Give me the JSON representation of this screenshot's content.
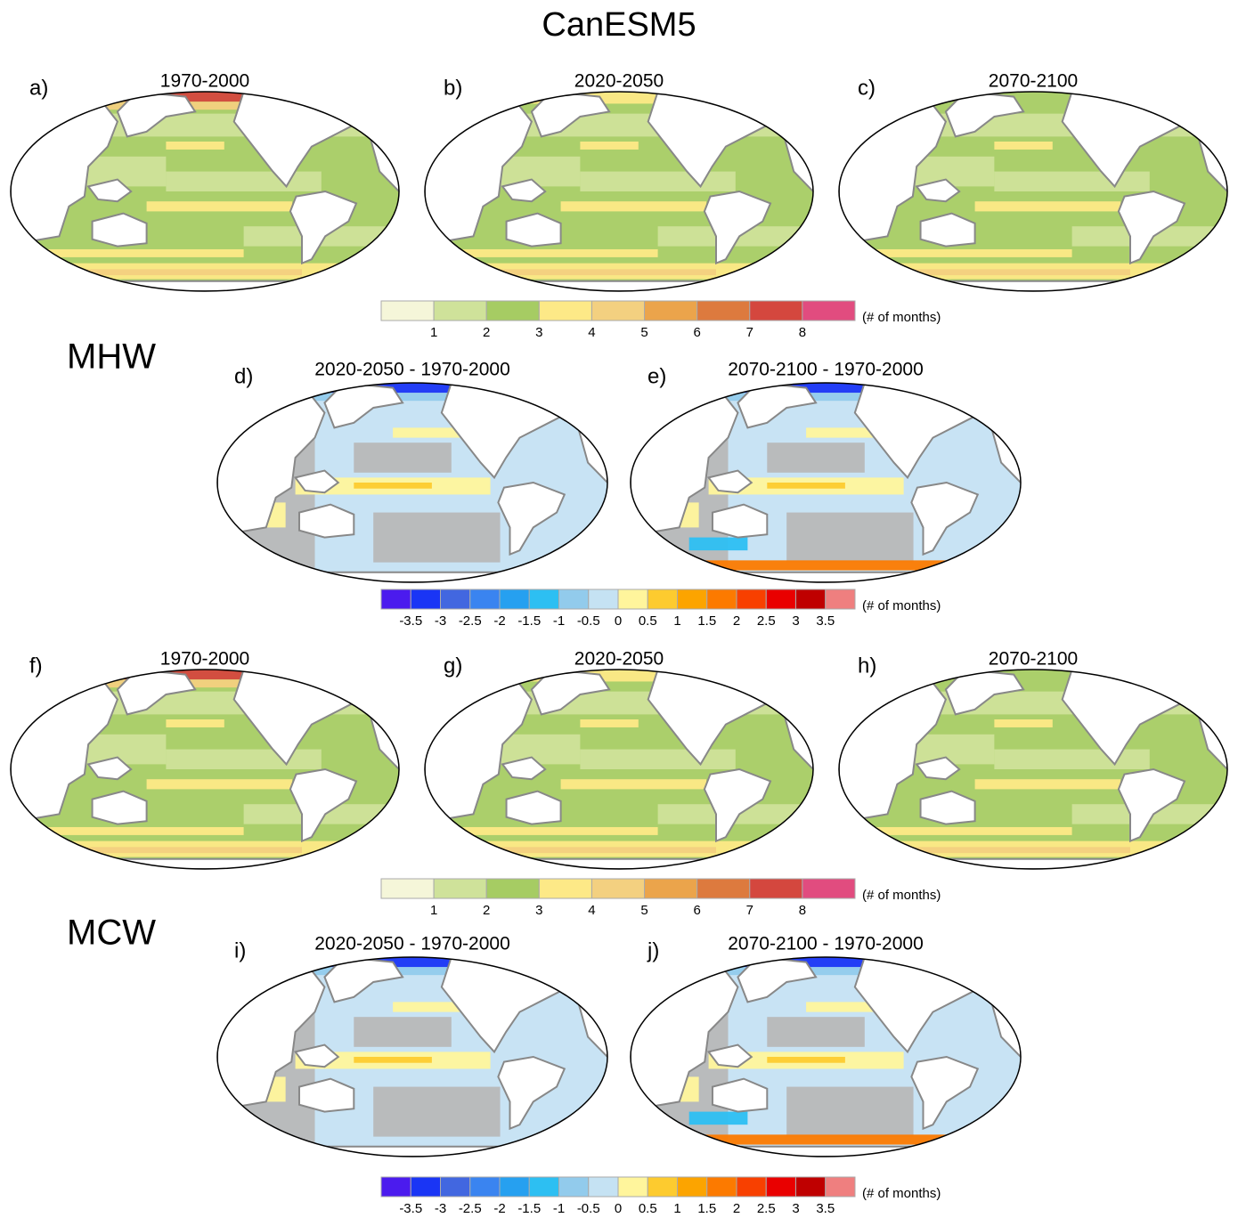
{
  "title": "CanESM5",
  "groups": [
    {
      "label": "MHW",
      "absolute": {
        "panels": [
          {
            "label": "a)",
            "title": "1970-2000"
          },
          {
            "label": "b)",
            "title": "2020-2050"
          },
          {
            "label": "c)",
            "title": "2070-2100"
          }
        ],
        "colorbar": {
          "colors": [
            "#f5f6d9",
            "#cfe29a",
            "#a6cc63",
            "#fde987",
            "#f3d080",
            "#eba44b",
            "#dd7a3e",
            "#d4473e",
            "#e14c7f"
          ],
          "ticks": [
            1,
            2,
            3,
            4,
            5,
            6,
            7,
            8
          ],
          "unit": "(# of months)"
        }
      },
      "difference": {
        "panels": [
          {
            "label": "d)",
            "title": "2020-2050 - 1970-2000"
          },
          {
            "label": "e)",
            "title": "2070-2100 - 1970-2000"
          }
        ],
        "colorbar": {
          "colors": [
            "#4b1bee",
            "#1a35f5",
            "#4267e0",
            "#3a84f0",
            "#26a0f0",
            "#2dbff2",
            "#92cbec",
            "#c5e2f3",
            "#fff59c",
            "#fdcb2f",
            "#fca400",
            "#fc7a00",
            "#f84000",
            "#e90000",
            "#bf0000",
            "#ef7f7f"
          ],
          "ticks": [
            -3.5,
            -3,
            -2.5,
            -2,
            -1.5,
            -1,
            -0.5,
            0,
            0.5,
            1,
            1.5,
            2,
            2.5,
            3,
            3.5
          ],
          "unit": "(# of months)"
        }
      }
    },
    {
      "label": "MCW",
      "absolute": {
        "panels": [
          {
            "label": "f)",
            "title": "1970-2000"
          },
          {
            "label": "g)",
            "title": "2020-2050"
          },
          {
            "label": "h)",
            "title": "2070-2100"
          }
        ],
        "colorbar": {
          "colors": [
            "#f5f6d9",
            "#cfe29a",
            "#a6cc63",
            "#fde987",
            "#f3d080",
            "#eba44b",
            "#dd7a3e",
            "#d4473e",
            "#e14c7f"
          ],
          "ticks": [
            1,
            2,
            3,
            4,
            5,
            6,
            7,
            8
          ],
          "unit": "(# of months)"
        }
      },
      "difference": {
        "panels": [
          {
            "label": "i)",
            "title": "2020-2050 - 1970-2000"
          },
          {
            "label": "j)",
            "title": "2070-2100 - 1970-2000"
          }
        ],
        "colorbar": {
          "colors": [
            "#4b1bee",
            "#1a35f5",
            "#4267e0",
            "#3a84f0",
            "#26a0f0",
            "#2dbff2",
            "#92cbec",
            "#c5e2f3",
            "#fff59c",
            "#fdcb2f",
            "#fca400",
            "#fc7a00",
            "#f84000",
            "#e90000",
            "#bf0000",
            "#ef7f7f"
          ],
          "ticks": [
            -3.5,
            -3,
            -2.5,
            -2,
            -1.5,
            -1,
            -0.5,
            0,
            0.5,
            1,
            1.5,
            2,
            2.5,
            3,
            3.5
          ],
          "unit": "(# of months)"
        }
      }
    }
  ]
}
